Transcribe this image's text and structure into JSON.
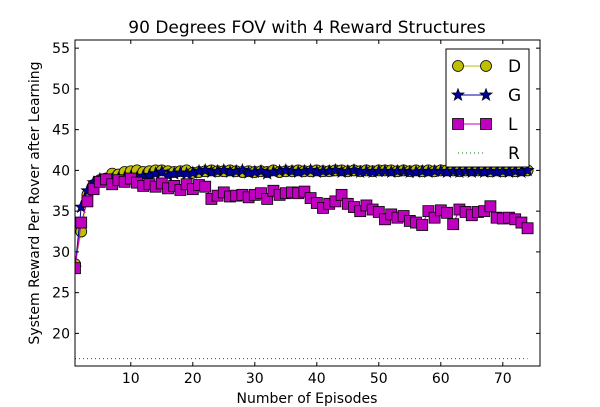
{
  "chart_data": {
    "type": "line",
    "title": "90 Degrees FOV with 4 Reward Structures",
    "xlabel": "Number of Episodes",
    "ylabel": "System Reward Per Rover after Learning",
    "xlim": [
      1,
      76
    ],
    "ylim": [
      16,
      56
    ],
    "xticks": [
      10,
      20,
      30,
      40,
      50,
      60,
      70
    ],
    "yticks": [
      20,
      25,
      30,
      35,
      40,
      45,
      50,
      55
    ],
    "grid": false,
    "legend_position": "top-right",
    "x": [
      1,
      2,
      3,
      4,
      5,
      6,
      7,
      8,
      9,
      10,
      11,
      12,
      13,
      14,
      15,
      16,
      17,
      18,
      19,
      20,
      21,
      22,
      23,
      24,
      25,
      26,
      27,
      28,
      29,
      30,
      31,
      32,
      33,
      34,
      35,
      36,
      37,
      38,
      39,
      40,
      41,
      42,
      43,
      44,
      45,
      46,
      47,
      48,
      49,
      50,
      51,
      52,
      53,
      54,
      55,
      56,
      57,
      58,
      59,
      60,
      61,
      62,
      63,
      64,
      65,
      66,
      67,
      68,
      69,
      70,
      71,
      72,
      73,
      74
    ],
    "series": [
      {
        "name": "D",
        "color": "#bfbf00",
        "marker": "circle",
        "values": [
          28.5,
          32.5,
          37.0,
          38.2,
          38.8,
          39.0,
          39.6,
          39.5,
          39.8,
          39.9,
          40.0,
          39.8,
          39.9,
          40.0,
          40.0,
          39.9,
          39.8,
          39.9,
          40.0,
          39.7,
          39.8,
          39.9,
          40.0,
          39.9,
          39.9,
          40.0,
          39.9,
          39.8,
          39.9,
          39.8,
          39.9,
          39.8,
          40.0,
          39.8,
          39.9,
          39.9,
          40.0,
          39.9,
          39.9,
          40.0,
          39.9,
          39.9,
          40.0,
          40.0,
          39.9,
          40.0,
          39.9,
          40.0,
          39.9,
          40.0,
          40.0,
          40.0,
          39.9,
          40.0,
          39.9,
          40.0,
          39.9,
          40.0,
          39.9,
          40.0,
          40.0,
          40.0,
          39.9,
          40.0,
          40.0,
          40.0,
          40.0,
          39.9,
          40.0,
          39.9,
          40.0,
          39.9,
          40.0,
          40.0
        ]
      },
      {
        "name": "G",
        "color": "#00009f",
        "marker": "star",
        "values": [
          28.0,
          35.5,
          37.5,
          38.5,
          38.9,
          38.7,
          38.9,
          39.0,
          39.1,
          39.2,
          39.1,
          39.3,
          39.4,
          39.6,
          39.8,
          39.4,
          39.6,
          39.7,
          39.6,
          39.7,
          39.9,
          40.0,
          39.8,
          39.9,
          40.0,
          39.8,
          39.9,
          40.0,
          39.7,
          39.8,
          39.9,
          39.6,
          39.8,
          39.9,
          40.0,
          39.9,
          39.8,
          39.9,
          40.0,
          39.8,
          39.9,
          39.9,
          40.0,
          39.8,
          39.9,
          40.0,
          39.8,
          39.9,
          39.8,
          39.9,
          39.9,
          39.8,
          39.9,
          39.9,
          39.8,
          39.8,
          39.9,
          39.8,
          39.9,
          39.9,
          39.8,
          39.9,
          39.8,
          39.9,
          39.8,
          39.9,
          39.8,
          39.9,
          39.8,
          39.9,
          39.8,
          39.9,
          39.8,
          40.0
        ]
      },
      {
        "name": "L",
        "color": "#bf00bf",
        "marker": "square",
        "values": [
          28.0,
          33.6,
          36.2,
          37.7,
          38.6,
          38.9,
          38.3,
          38.8,
          38.6,
          39.0,
          38.5,
          38.1,
          38.3,
          38.0,
          38.4,
          37.8,
          38.1,
          37.6,
          38.3,
          37.7,
          38.2,
          38.0,
          36.5,
          36.9,
          37.3,
          36.8,
          36.9,
          37.0,
          36.7,
          37.0,
          37.2,
          36.5,
          37.5,
          37.0,
          37.2,
          37.3,
          37.2,
          37.4,
          36.6,
          36.0,
          35.4,
          35.9,
          36.2,
          37.0,
          35.9,
          35.5,
          35.0,
          35.7,
          35.2,
          34.9,
          34.0,
          34.6,
          34.2,
          34.4,
          33.8,
          33.6,
          33.3,
          35.0,
          34.2,
          35.1,
          34.8,
          33.4,
          35.2,
          34.9,
          34.5,
          34.9,
          35.0,
          35.6,
          34.2,
          34.1,
          34.2,
          34.0,
          33.6,
          32.9
        ]
      },
      {
        "name": "R",
        "color": "#007f00",
        "marker": "none",
        "style": "dotted",
        "values": [
          16.9,
          16.9,
          16.9,
          16.9,
          16.9,
          16.9,
          16.9,
          16.9,
          16.9,
          16.9,
          16.9,
          16.9,
          16.9,
          16.9,
          16.9,
          16.9,
          16.9,
          16.9,
          16.9,
          16.9,
          16.9,
          16.9,
          16.9,
          16.9,
          16.9,
          16.9,
          16.9,
          16.9,
          16.9,
          16.9,
          16.9,
          16.9,
          16.9,
          16.9,
          16.9,
          16.9,
          16.9,
          16.9,
          16.9,
          16.9,
          16.9,
          16.9,
          16.9,
          16.9,
          16.9,
          16.9,
          16.9,
          16.9,
          16.9,
          16.9,
          16.9,
          16.9,
          16.9,
          16.9,
          16.9,
          16.9,
          16.9,
          16.9,
          16.9,
          16.9,
          16.9,
          16.9,
          16.9,
          16.9,
          16.9,
          16.9,
          16.9,
          16.9,
          16.9,
          16.9,
          16.9,
          16.9,
          16.9,
          16.9
        ]
      }
    ]
  }
}
